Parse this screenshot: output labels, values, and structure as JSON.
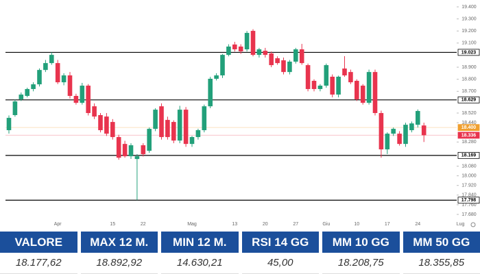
{
  "chart_data": {
    "type": "candlestick",
    "ylim": [
      17680,
      19400
    ],
    "yticks": [
      {
        "value": 19400,
        "label": "19.400"
      },
      {
        "value": 19300,
        "label": "19.300"
      },
      {
        "value": 19200,
        "label": "19.200"
      },
      {
        "value": 19100,
        "label": "19.100"
      },
      {
        "value": 18900,
        "label": "18.900"
      },
      {
        "value": 18800,
        "label": "18.800"
      },
      {
        "value": 18700,
        "label": "18.700"
      },
      {
        "value": 18520,
        "label": "18.520"
      },
      {
        "value": 18440,
        "label": "18.440"
      },
      {
        "value": 18280,
        "label": "18.280"
      },
      {
        "value": 18080,
        "label": "18.080"
      },
      {
        "value": 18000,
        "label": "18.000"
      },
      {
        "value": 17920,
        "label": "17.920"
      },
      {
        "value": 17840,
        "label": "17.840"
      },
      {
        "value": 17760,
        "label": "17.760"
      },
      {
        "value": 17680,
        "label": "17.680"
      }
    ],
    "levels": [
      {
        "value": 19023,
        "label": "19.023",
        "color": "#000000",
        "line": true
      },
      {
        "value": 18629,
        "label": "18.629",
        "color": "#000000",
        "line": true
      },
      {
        "value": 18169,
        "label": "18.169",
        "color": "#000000",
        "line": true
      },
      {
        "value": 17798,
        "label": "17.798",
        "color": "#000000",
        "line": true
      },
      {
        "value": 18400,
        "label": "18.400",
        "color": "#f0a030",
        "line": false
      },
      {
        "value": 18336,
        "label": "18.336",
        "color": "#e8344e",
        "line": false
      }
    ],
    "up_color": "#22a07a",
    "down_color": "#e8344e",
    "categories": [
      null,
      null,
      null,
      null,
      null,
      null,
      null,
      null,
      "Apr",
      null,
      null,
      null,
      null,
      null,
      null,
      null,
      null,
      "15",
      null,
      null,
      null,
      null,
      "22",
      null,
      null,
      null,
      null,
      null,
      null,
      null,
      "Mag",
      null,
      null,
      null,
      null,
      null,
      null,
      "13",
      null,
      null,
      null,
      null,
      "20",
      null,
      null,
      null,
      null,
      "27",
      null,
      null,
      null,
      null,
      "Giu",
      null,
      null,
      null,
      null,
      "10",
      null,
      null,
      null,
      null,
      "17",
      null,
      null,
      null,
      null,
      "24",
      null,
      null,
      null,
      null,
      null,
      null,
      "Lug"
    ],
    "ohlc": [
      [
        18378,
        18500,
        18350,
        18480
      ],
      [
        18503,
        18630,
        18490,
        18616
      ],
      [
        18634,
        18690,
        18620,
        18673
      ],
      [
        18662,
        18730,
        18650,
        18719
      ],
      [
        18719,
        18775,
        18700,
        18758
      ],
      [
        18758,
        18890,
        18740,
        18877
      ],
      [
        18877,
        18960,
        18860,
        18934
      ],
      [
        18934,
        19023,
        18920,
        19002
      ],
      [
        18934,
        18960,
        18760,
        18775
      ],
      [
        18775,
        18850,
        18750,
        18832
      ],
      [
        18832,
        18860,
        18640,
        18662
      ],
      [
        18662,
        18680,
        18590,
        18605
      ],
      [
        18605,
        18770,
        18590,
        18747
      ],
      [
        18747,
        18760,
        18500,
        18520
      ],
      [
        18576,
        18600,
        18470,
        18491
      ],
      [
        18503,
        18520,
        18360,
        18378
      ],
      [
        18491,
        18520,
        18330,
        18349
      ],
      [
        18446,
        18470,
        18300,
        18321
      ],
      [
        18321,
        18340,
        18133,
        18150
      ],
      [
        18264,
        18290,
        18150,
        18162
      ],
      [
        18162,
        18270,
        18140,
        18253
      ],
      [
        18139,
        18180,
        17798,
        18162
      ],
      [
        18253,
        18270,
        18160,
        18179
      ],
      [
        18207,
        18400,
        18190,
        18389
      ],
      [
        18389,
        18560,
        18370,
        18548
      ],
      [
        18576,
        18600,
        18300,
        18321
      ],
      [
        18463,
        18490,
        18300,
        18321
      ],
      [
        18446,
        18460,
        18270,
        18292
      ],
      [
        18292,
        18580,
        18270,
        18548
      ],
      [
        18548,
        18570,
        18240,
        18264
      ],
      [
        18264,
        18330,
        18240,
        18321
      ],
      [
        18321,
        18390,
        18300,
        18378
      ],
      [
        18378,
        18590,
        18360,
        18576
      ],
      [
        18576,
        18820,
        18560,
        18804
      ],
      [
        18804,
        18850,
        18790,
        18832
      ],
      [
        18832,
        19010,
        18810,
        19002
      ],
      [
        19002,
        19090,
        18990,
        19071
      ],
      [
        19088,
        19110,
        19030,
        19048
      ],
      [
        19071,
        19090,
        19010,
        19031
      ],
      [
        19048,
        19200,
        19030,
        19184
      ],
      [
        19201,
        19215,
        18990,
        19002
      ],
      [
        19002,
        19060,
        18980,
        19048
      ],
      [
        19036,
        19060,
        18980,
        19002
      ],
      [
        19014,
        19030,
        18900,
        18917
      ],
      [
        18974,
        18990,
        18920,
        18934
      ],
      [
        18957,
        18980,
        18840,
        18860
      ],
      [
        18860,
        18960,
        18840,
        18946
      ],
      [
        18946,
        19060,
        18930,
        19048
      ],
      [
        19048,
        19093,
        18920,
        18934
      ],
      [
        18917,
        18930,
        18700,
        18719
      ],
      [
        18787,
        18800,
        18700,
        18719
      ],
      [
        18719,
        18760,
        18700,
        18747
      ],
      [
        18747,
        18930,
        18730,
        18917
      ],
      [
        18821,
        18840,
        18650,
        18673
      ],
      [
        18673,
        18830,
        18650,
        18821
      ],
      [
        18889,
        18991,
        18820,
        18832
      ],
      [
        18860,
        18880,
        18760,
        18775
      ],
      [
        18787,
        18800,
        18620,
        18634
      ],
      [
        18747,
        18760,
        18590,
        18605
      ],
      [
        18605,
        18880,
        18590,
        18860
      ],
      [
        18860,
        18880,
        18500,
        18520
      ],
      [
        18520,
        18540,
        18150,
        18219
      ],
      [
        18219,
        18360,
        18180,
        18349
      ],
      [
        18349,
        18400,
        18330,
        18389
      ],
      [
        18349,
        18370,
        18250,
        18264
      ],
      [
        18264,
        18440,
        18240,
        18423
      ],
      [
        18378,
        18450,
        18360,
        18434
      ],
      [
        18423,
        18550,
        18400,
        18537
      ],
      [
        18417,
        18440,
        18280,
        18336
      ],
      null,
      null,
      null,
      null,
      null,
      null
    ]
  },
  "table": {
    "headers": [
      "VALORE",
      "MAX 12 M.",
      "MIN 12 M.",
      "RSI 14 GG",
      "MM 10 GG",
      "MM 50 GG"
    ],
    "rows": [
      [
        "18.177,62",
        "18.892,92",
        "14.630,21",
        "45,00",
        "18.208,75",
        "18.355,85"
      ]
    ]
  }
}
